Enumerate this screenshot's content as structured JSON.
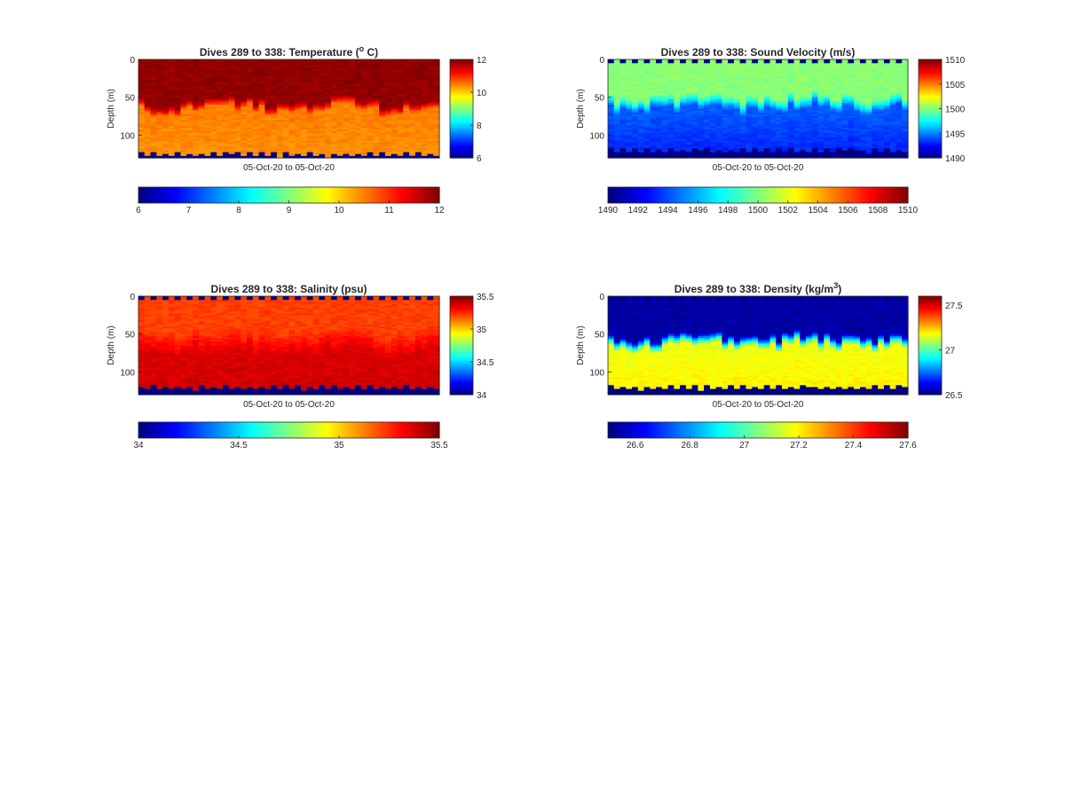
{
  "figure": {
    "background": "#ffffff",
    "colormap": "jet"
  },
  "chart_data": [
    {
      "type": "heatmap",
      "title": "Dives 289 to 338: Temperature (° C)",
      "title_parts": [
        "Dives 289 to 338: Temperature (",
        "o",
        " C)"
      ],
      "title_superscript": true,
      "xlabel": "05-Oct-20 to 05-Oct-20",
      "ylabel": "Depth (m)",
      "x_dives": [
        289,
        338
      ],
      "ylim": [
        0,
        130
      ],
      "y_reversed": true,
      "yticks": [
        "0",
        "50",
        "100"
      ],
      "yticks_values": [
        0,
        50,
        100
      ],
      "clim": [
        6,
        12
      ],
      "colorbar_right_ticks": [
        "6",
        "8",
        "10",
        "12"
      ],
      "colorbar_right_values": [
        6,
        8,
        10,
        12
      ],
      "colorbar_bottom_ticks": [
        "6",
        "7",
        "8",
        "9",
        "10",
        "11",
        "12"
      ],
      "colorbar_bottom_values": [
        6,
        7,
        8,
        9,
        10,
        11,
        12
      ],
      "layers": {
        "surface_value": 11.9,
        "mixed_layer_depth_m": 62,
        "thermocline_width_m": 10,
        "deep_value": 10.5,
        "bottom_value": 10.4,
        "no_data_value": 6,
        "top_gap_m": 0,
        "bottom_gap_m": 125
      }
    },
    {
      "type": "heatmap",
      "title": "Dives 289 to 338: Sound Velocity (m/s)",
      "title_parts": [
        "Dives 289 to 338: Sound Velocity (m/s)",
        "",
        ""
      ],
      "title_superscript": false,
      "xlabel": "05-Oct-20 to 05-Oct-20",
      "ylabel": "Depth (m)",
      "x_dives": [
        289,
        338
      ],
      "ylim": [
        0,
        130
      ],
      "y_reversed": true,
      "yticks": [
        "0",
        "50",
        "100"
      ],
      "yticks_values": [
        0,
        50,
        100
      ],
      "clim": [
        1490,
        1510
      ],
      "colorbar_right_ticks": [
        "1490",
        "1495",
        "1500",
        "1505",
        "1510"
      ],
      "colorbar_right_values": [
        1490,
        1495,
        1500,
        1505,
        1510
      ],
      "colorbar_bottom_ticks": [
        "1490",
        "1492",
        "1494",
        "1496",
        "1498",
        "1500",
        "1502",
        "1504",
        "1506",
        "1508",
        "1510"
      ],
      "colorbar_bottom_values": [
        1490,
        1492,
        1494,
        1496,
        1498,
        1500,
        1502,
        1504,
        1506,
        1508,
        1510
      ],
      "layers": {
        "surface_value": 1500.2,
        "mixed_layer_depth_m": 58,
        "thermocline_width_m": 16,
        "deep_value": 1494.2,
        "bottom_value": 1493.2,
        "no_data_value": 1490,
        "top_gap_m": 5,
        "bottom_gap_m": 120
      }
    },
    {
      "type": "heatmap",
      "title": "Dives 289 to 338: Salinity (psu)",
      "title_parts": [
        "Dives 289 to 338: Salinity (psu)",
        "",
        ""
      ],
      "title_superscript": false,
      "xlabel": "05-Oct-20 to 05-Oct-20",
      "ylabel": "Depth (m)",
      "x_dives": [
        289,
        338
      ],
      "ylim": [
        0,
        130
      ],
      "y_reversed": true,
      "yticks": [
        "0",
        "50",
        "100"
      ],
      "yticks_values": [
        0,
        50,
        100
      ],
      "clim": [
        34,
        35.5
      ],
      "colorbar_right_ticks": [
        "34",
        "34.5",
        "35",
        "35.5"
      ],
      "colorbar_right_values": [
        34,
        34.5,
        35,
        35.5
      ],
      "colorbar_bottom_ticks": [
        "34",
        "34.5",
        "35",
        "35.5"
      ],
      "colorbar_bottom_values": [
        34,
        34.5,
        35,
        35.5
      ],
      "layers": {
        "surface_value": 35.22,
        "mixed_layer_depth_m": 60,
        "thermocline_width_m": 30,
        "deep_value": 35.37,
        "bottom_value": 35.38,
        "no_data_value": 34,
        "top_gap_m": 5,
        "bottom_gap_m": 120
      }
    },
    {
      "type": "heatmap",
      "title": "Dives 289 to 338: Density (kg/m³)",
      "title_parts": [
        "Dives 289 to 338: Density (kg/m",
        "3",
        ")"
      ],
      "title_superscript": true,
      "xlabel": "05-Oct-20 to 05-Oct-20",
      "ylabel": "Depth (m)",
      "x_dives": [
        289,
        338
      ],
      "ylim": [
        0,
        130
      ],
      "y_reversed": true,
      "yticks": [
        "0",
        "50",
        "100"
      ],
      "yticks_values": [
        0,
        50,
        100
      ],
      "clim": [
        26.5,
        27.6
      ],
      "colorbar_right_ticks": [
        "26.5",
        "27",
        "27.5"
      ],
      "colorbar_right_values": [
        26.5,
        27,
        27.5
      ],
      "colorbar_bottom_ticks": [
        "26.6",
        "26.8",
        "27",
        "27.2",
        "27.4",
        "27.6"
      ],
      "colorbar_bottom_values": [
        26.6,
        26.8,
        27,
        27.2,
        27.4,
        27.6
      ],
      "layers": {
        "surface_value": 26.54,
        "mixed_layer_depth_m": 60,
        "thermocline_width_m": 14,
        "deep_value": 27.17,
        "bottom_value": 27.2,
        "no_data_value": 26.5,
        "top_gap_m": 5,
        "bottom_gap_m": 120
      }
    }
  ]
}
